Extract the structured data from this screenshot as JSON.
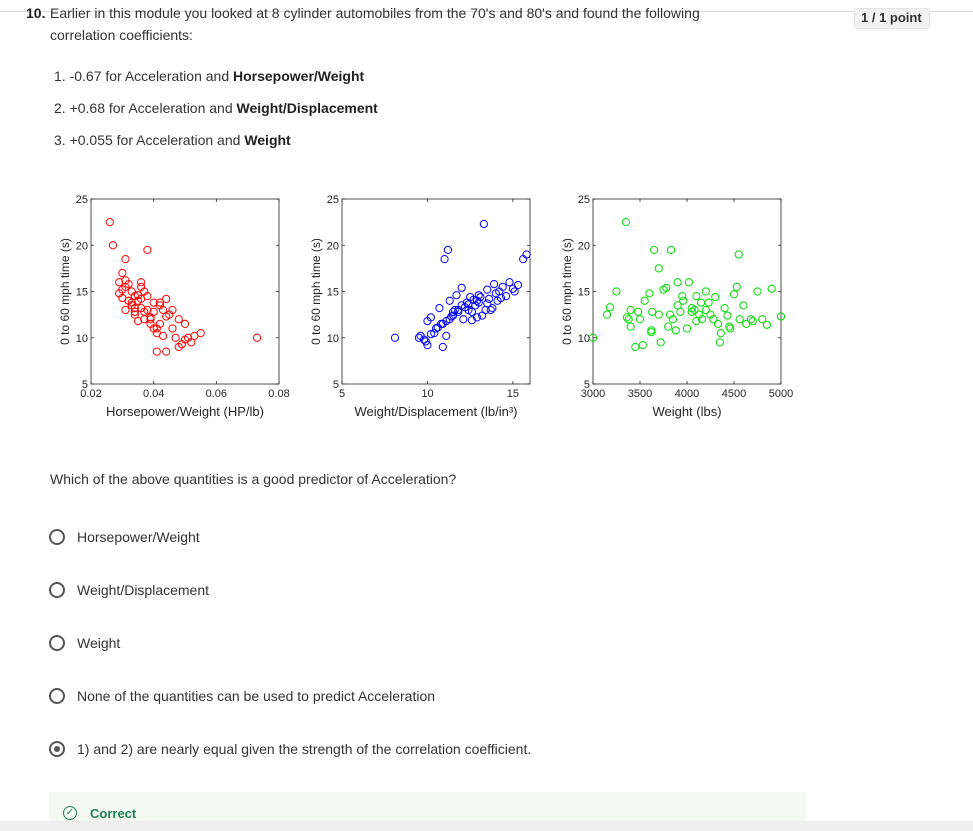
{
  "question": {
    "number": "10.",
    "line1": "Earlier in this module you looked at 8 cylinder automobiles from the 70's and 80's and found the following",
    "line2": "correlation coefficients:",
    "points": "1 / 1 point",
    "coefficients": [
      {
        "prefix": "1. -0.67 for Acceleration and ",
        "bold": "Horsepower/Weight"
      },
      {
        "prefix": "2. +0.68 for Acceleration and ",
        "bold": "Weight/Displacement"
      },
      {
        "prefix": "3. +0.055 for Acceleration and ",
        "bold": "Weight"
      }
    ],
    "prompt": "Which of the above quantities is a good predictor of Acceleration?",
    "options": [
      {
        "label": "Horsepower/Weight",
        "selected": false
      },
      {
        "label": "Weight/Displacement",
        "selected": false
      },
      {
        "label": "Weight",
        "selected": false
      },
      {
        "label": "None of the quantities can be used to predict Acceleration",
        "selected": false
      },
      {
        "label": "1) and 2) are nearly equal given the strength of the correlation coefficient.",
        "selected": true
      }
    ],
    "feedback": "Correct"
  },
  "chart_data": [
    {
      "type": "scatter",
      "xlabel": "Horsepower/Weight (HP/lb)",
      "ylabel": "0 to 60 mph time (s)",
      "xlim": [
        0.02,
        0.08
      ],
      "ylim": [
        5,
        25
      ],
      "xticks": [
        "0.02",
        "0.04",
        "0.06",
        "0.08"
      ],
      "yticks": [
        "5",
        "10",
        "15",
        "20",
        "25"
      ],
      "color": "#ff0000",
      "x": [
        0.026,
        0.027,
        0.031,
        0.038,
        0.03,
        0.029,
        0.031,
        0.033,
        0.034,
        0.032,
        0.036,
        0.04,
        0.042,
        0.043,
        0.045,
        0.048,
        0.05,
        0.055,
        0.052,
        0.048,
        0.044,
        0.041,
        0.04,
        0.039,
        0.037,
        0.034,
        0.033,
        0.035,
        0.036,
        0.03,
        0.029,
        0.032,
        0.031,
        0.037,
        0.039,
        0.041,
        0.035,
        0.034,
        0.033,
        0.031,
        0.036,
        0.038,
        0.042,
        0.044,
        0.046,
        0.043,
        0.047,
        0.051,
        0.05,
        0.049,
        0.053,
        0.04,
        0.042,
        0.037,
        0.073,
        0.036,
        0.034,
        0.032,
        0.038,
        0.035,
        0.044,
        0.046,
        0.039,
        0.041,
        0.03
      ],
      "y": [
        22.5,
        20.0,
        18.5,
        19.5,
        17.0,
        16.0,
        15.5,
        15.0,
        14.5,
        14.0,
        14.2,
        13.8,
        13.5,
        13.0,
        12.5,
        12.0,
        11.5,
        10.5,
        9.5,
        9.0,
        8.5,
        8.5,
        11.0,
        12.0,
        12.8,
        13.2,
        13.5,
        14.6,
        15.5,
        15.2,
        14.8,
        14.0,
        13.0,
        12.0,
        11.5,
        11.0,
        11.8,
        12.5,
        13.8,
        16.2,
        16.0,
        14.5,
        13.8,
        12.3,
        11.0,
        10.2,
        10.0,
        10.0,
        9.8,
        9.3,
        10.2,
        12.8,
        11.5,
        15.0,
        10.0,
        13.2,
        12.8,
        15.8,
        13.0,
        14.0,
        14.2,
        13.0,
        12.2,
        10.5,
        14.3
      ]
    },
    {
      "type": "scatter",
      "xlabel": "Weight/Displacement (lb/in³)",
      "ylabel": "0 to 60 mph time (s)",
      "xlim": [
        5,
        16
      ],
      "ylim": [
        5,
        25
      ],
      "xticks": [
        "5",
        "10",
        "15"
      ],
      "yticks": [
        "5",
        "10",
        "15",
        "20",
        "25"
      ],
      "color": "#0000ff",
      "x": [
        8.1,
        9.5,
        10.0,
        10.2,
        10.6,
        10.8,
        10.9,
        11.0,
        11.2,
        11.3,
        11.5,
        11.6,
        11.8,
        12.0,
        12.1,
        12.3,
        12.5,
        12.6,
        12.8,
        12.9,
        13.0,
        13.1,
        13.2,
        13.4,
        13.5,
        13.6,
        13.8,
        14.0,
        14.2,
        14.3,
        14.4,
        14.6,
        14.8,
        15.0,
        15.1,
        15.3,
        15.6,
        15.8,
        13.3,
        10.4,
        10.5,
        10.9,
        11.1,
        11.4,
        11.8,
        12.2,
        12.4,
        12.7,
        13.0,
        13.5,
        13.9,
        12.0,
        11.7,
        11.3,
        10.7,
        10.2,
        10.0,
        9.8,
        9.6,
        9.9,
        12.4,
        12.9,
        13.7,
        14.1,
        11.5,
        12.6,
        11.1
      ],
      "y": [
        10.0,
        10.0,
        9.2,
        10.4,
        11.1,
        11.5,
        9.0,
        18.5,
        19.5,
        12.0,
        12.4,
        13.0,
        13.0,
        13.5,
        12.0,
        13.8,
        14.4,
        12.8,
        13.5,
        14.0,
        13.8,
        14.4,
        12.4,
        13.0,
        13.7,
        14.2,
        13.2,
        14.8,
        15.0,
        14.3,
        15.5,
        14.5,
        16.0,
        15.3,
        15.0,
        15.7,
        18.5,
        19.0,
        22.3,
        10.5,
        11.0,
        11.5,
        11.8,
        12.3,
        12.8,
        13.3,
        13.6,
        14.1,
        14.6,
        15.2,
        15.8,
        15.4,
        14.6,
        14.0,
        13.2,
        12.2,
        11.8,
        9.8,
        10.2,
        9.6,
        13.0,
        12.2,
        13.0,
        14.0,
        12.8,
        11.9,
        10.2
      ]
    },
    {
      "type": "scatter",
      "xlabel": "Weight (lbs)",
      "ylabel": "0 to 60 mph time (s)",
      "xlim": [
        3000,
        5000
      ],
      "ylim": [
        5,
        25
      ],
      "xticks": [
        "3000",
        "3500",
        "4000",
        "4500",
        "5000"
      ],
      "yticks": [
        "5",
        "10",
        "15",
        "20",
        "25"
      ],
      "color": "#00dd00",
      "x": [
        3000,
        3150,
        3180,
        3250,
        3350,
        3380,
        3400,
        3450,
        3500,
        3530,
        3600,
        3620,
        3650,
        3700,
        3720,
        3750,
        3800,
        3830,
        3850,
        3880,
        3900,
        3930,
        3960,
        4000,
        4020,
        4050,
        4080,
        4100,
        4130,
        4160,
        4200,
        4230,
        4250,
        4300,
        4330,
        4360,
        4400,
        4430,
        4460,
        4500,
        4530,
        4560,
        4600,
        4630,
        4700,
        4750,
        4800,
        4850,
        4900,
        5000,
        3550,
        3620,
        3700,
        3820,
        4150,
        4350,
        4280,
        4050,
        3950,
        3480,
        3400,
        3900,
        4450,
        4550,
        4200,
        4100,
        4680,
        3780,
        3630,
        3360
      ],
      "y": [
        10.0,
        12.5,
        13.3,
        15.0,
        22.5,
        12.0,
        11.2,
        9.0,
        12.0,
        9.2,
        14.8,
        10.8,
        19.5,
        12.5,
        9.5,
        15.2,
        11.2,
        19.5,
        12.0,
        10.8,
        13.5,
        12.8,
        14.0,
        11.0,
        16.0,
        12.8,
        13.0,
        14.5,
        12.5,
        12.0,
        15.0,
        13.8,
        12.5,
        14.4,
        11.5,
        10.5,
        13.2,
        12.4,
        11.0,
        14.7,
        15.5,
        12.0,
        13.5,
        11.5,
        11.8,
        15.0,
        12.0,
        11.4,
        15.3,
        12.3,
        14.0,
        10.6,
        17.5,
        12.5,
        13.8,
        9.5,
        12.0,
        13.2,
        14.5,
        12.8,
        13.0,
        16.0,
        11.2,
        19.0,
        13.0,
        11.8,
        12.0,
        15.4,
        12.8,
        12.2
      ]
    }
  ]
}
